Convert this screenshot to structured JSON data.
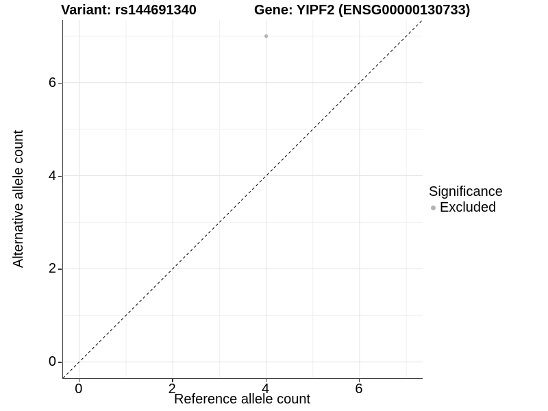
{
  "titles": {
    "variant": "Variant: rs144691340",
    "gene": "Gene: YIPF2 (ENSG00000130733)"
  },
  "chart_data": {
    "type": "scatter",
    "title_left": "Variant: rs144691340",
    "title_right": "Gene: YIPF2 (ENSG00000130733)",
    "xlabel": "Reference allele count",
    "ylabel": "Alternative allele count",
    "xlim": [
      -0.35,
      7.35
    ],
    "ylim": [
      -0.35,
      7.35
    ],
    "x_major_ticks": [
      0,
      2,
      4,
      6
    ],
    "y_major_ticks": [
      0,
      2,
      4,
      6
    ],
    "x_minor_gridlines": [
      1,
      3,
      5,
      7
    ],
    "y_minor_gridlines": [
      1,
      3,
      5,
      7
    ],
    "grid": true,
    "points": [
      {
        "x": 4,
        "y": 7,
        "series": "Excluded"
      }
    ],
    "identity_line": {
      "style": "dashed",
      "from": [
        -0.35,
        -0.35
      ],
      "to": [
        7.35,
        7.35
      ]
    },
    "legend": {
      "title": "Significance",
      "position": "right",
      "entries": [
        {
          "label": "Excluded",
          "color": "#b4b4b4"
        }
      ]
    }
  },
  "colors": {
    "point": "#b4b4b4",
    "grid_major": "#e3e3e3",
    "grid_minor": "#f0f0f0",
    "axis_line": "#3f3f3f",
    "tick": "#333333",
    "identity_line": "#000000",
    "text": "#000000"
  }
}
